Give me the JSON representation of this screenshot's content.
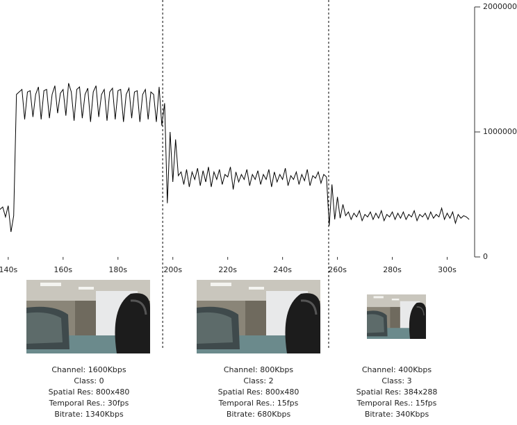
{
  "chart_data": {
    "type": "line",
    "x": [
      137,
      138,
      139,
      140,
      141,
      142,
      143,
      144,
      145,
      146,
      147,
      148,
      149,
      150,
      151,
      152,
      153,
      154,
      155,
      156,
      157,
      158,
      159,
      160,
      161,
      162,
      163,
      164,
      165,
      166,
      167,
      168,
      169,
      170,
      171,
      172,
      173,
      174,
      175,
      176,
      177,
      178,
      179,
      180,
      181,
      182,
      183,
      184,
      185,
      186,
      187,
      188,
      189,
      190,
      191,
      192,
      193,
      194,
      195,
      196,
      197,
      198,
      199,
      200,
      201,
      202,
      203,
      204,
      205,
      206,
      207,
      208,
      209,
      210,
      211,
      212,
      213,
      214,
      215,
      216,
      217,
      218,
      219,
      220,
      221,
      222,
      223,
      224,
      225,
      226,
      227,
      228,
      229,
      230,
      231,
      232,
      233,
      234,
      235,
      236,
      237,
      238,
      239,
      240,
      241,
      242,
      243,
      244,
      245,
      246,
      247,
      248,
      249,
      250,
      251,
      252,
      253,
      254,
      255,
      256,
      257,
      258,
      259,
      260,
      261,
      262,
      263,
      264,
      265,
      266,
      267,
      268,
      269,
      270,
      271,
      272,
      273,
      274,
      275,
      276,
      277,
      278,
      279,
      280,
      281,
      282,
      283,
      284,
      285,
      286,
      287,
      288,
      289,
      290,
      291,
      292,
      293,
      294,
      295,
      296,
      297,
      298,
      299,
      300,
      301,
      302,
      303,
      304,
      305,
      306,
      307,
      308
    ],
    "values": [
      380000,
      400000,
      320000,
      410000,
      200000,
      330000,
      1300000,
      1320000,
      1340000,
      1100000,
      1320000,
      1330000,
      1120000,
      1300000,
      1360000,
      1100000,
      1330000,
      1340000,
      1110000,
      1300000,
      1370000,
      1150000,
      1310000,
      1340000,
      1130000,
      1390000,
      1320000,
      1090000,
      1340000,
      1360000,
      1110000,
      1300000,
      1350000,
      1080000,
      1320000,
      1370000,
      1120000,
      1300000,
      1340000,
      1090000,
      1320000,
      1350000,
      1100000,
      1330000,
      1340000,
      1080000,
      1300000,
      1350000,
      1110000,
      1320000,
      1330000,
      1080000,
      1300000,
      1340000,
      1100000,
      1320000,
      1300000,
      1080000,
      1360000,
      1050000,
      1230000,
      430000,
      1000000,
      600000,
      940000,
      650000,
      680000,
      580000,
      700000,
      560000,
      680000,
      620000,
      710000,
      570000,
      690000,
      600000,
      720000,
      560000,
      680000,
      620000,
      700000,
      580000,
      660000,
      640000,
      720000,
      540000,
      680000,
      600000,
      660000,
      620000,
      700000,
      570000,
      660000,
      620000,
      690000,
      580000,
      660000,
      620000,
      700000,
      560000,
      680000,
      600000,
      660000,
      620000,
      710000,
      570000,
      650000,
      620000,
      680000,
      580000,
      660000,
      610000,
      700000,
      570000,
      650000,
      630000,
      680000,
      590000,
      660000,
      640000,
      250000,
      580000,
      300000,
      480000,
      310000,
      420000,
      330000,
      360000,
      300000,
      350000,
      320000,
      370000,
      290000,
      340000,
      320000,
      360000,
      300000,
      350000,
      310000,
      370000,
      290000,
      340000,
      320000,
      360000,
      300000,
      350000,
      310000,
      360000,
      300000,
      340000,
      320000,
      370000,
      290000,
      340000,
      320000,
      350000,
      300000,
      360000,
      310000,
      340000,
      320000,
      390000,
      300000,
      350000,
      310000,
      360000,
      270000,
      340000,
      310000,
      330000,
      320000,
      300000
    ],
    "color": "#000000",
    "xlim": [
      137,
      310
    ],
    "xticks": [
      {
        "value": 140,
        "label": "140s"
      },
      {
        "value": 160,
        "label": "160s"
      },
      {
        "value": 180,
        "label": "180s"
      },
      {
        "value": 200,
        "label": "200s"
      },
      {
        "value": 220,
        "label": "220s"
      },
      {
        "value": 240,
        "label": "240s"
      },
      {
        "value": 260,
        "label": "260s"
      },
      {
        "value": 280,
        "label": "280s"
      },
      {
        "value": 300,
        "label": "300s"
      }
    ],
    "ylim": [
      0,
      2000000
    ],
    "yticks": [
      0,
      1000000,
      2000000
    ],
    "vlines": [
      196.3,
      256.8
    ],
    "annotations": [
      [
        "Channel: 1600Kbps",
        "Class: 0",
        "Spatial Res: 800x480",
        "Temporal Res.: 30fps",
        "Bitrate: 1340Kbps"
      ],
      [
        "Channel: 800Kbps",
        "Class: 2",
        "Spatial Res: 800x480",
        "Temporal Res.: 15fps",
        "Bitrate: 680Kbps"
      ],
      [
        "Channel: 400Kbps",
        "Class: 3",
        "Spatial Res: 384x288",
        "Temporal Res.: 15fps",
        "Bitrate: 340Kbps"
      ]
    ]
  }
}
